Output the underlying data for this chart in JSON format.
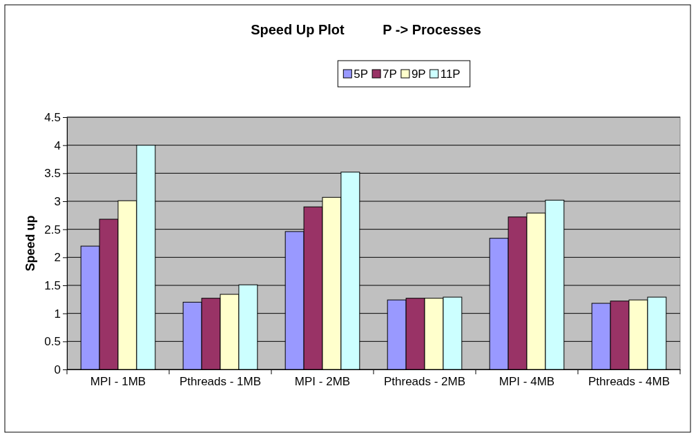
{
  "chart_data": {
    "type": "bar",
    "title": "Speed Up Plot          P -> Processes",
    "ylabel": "Speed up",
    "categories": [
      "MPI - 1MB",
      "Pthreads - 1MB",
      "MPI - 2MB",
      "Pthreads - 2MB",
      "MPI - 4MB",
      "Pthreads - 4MB"
    ],
    "series": [
      {
        "name": "5P",
        "color": "#9999ff",
        "values": [
          2.2,
          1.2,
          2.46,
          1.24,
          2.34,
          1.18
        ]
      },
      {
        "name": "7P",
        "color": "#993366",
        "values": [
          2.68,
          1.27,
          2.9,
          1.27,
          2.72,
          1.22
        ]
      },
      {
        "name": "9P",
        "color": "#ffffcc",
        "values": [
          3.01,
          1.34,
          3.07,
          1.27,
          2.79,
          1.24
        ]
      },
      {
        "name": "11P",
        "color": "#ccffff",
        "values": [
          4.0,
          1.51,
          3.52,
          1.29,
          3.02,
          1.29
        ]
      }
    ],
    "ylim": [
      0,
      4.5
    ],
    "yticks": [
      0,
      0.5,
      1,
      1.5,
      2,
      2.5,
      3,
      3.5,
      4,
      4.5
    ],
    "grid": "y",
    "legend": "top"
  }
}
